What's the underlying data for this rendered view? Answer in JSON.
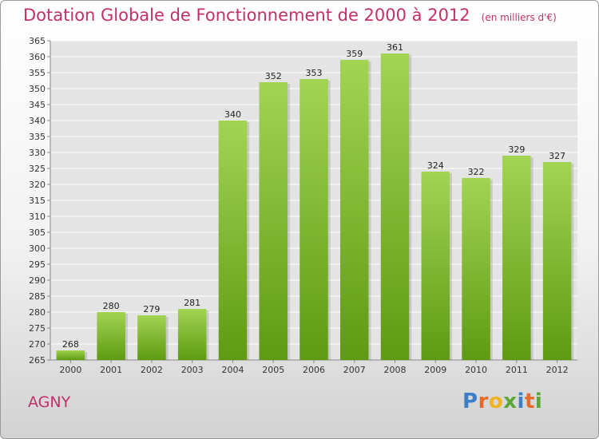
{
  "title": "Dotation Globale de Fonctionnement de 2000 à 2012",
  "unit_note": "(en milliers d'€)",
  "place": "AGNY",
  "logo": {
    "text": "Proxiti"
  },
  "colors": {
    "title": "#c0306a",
    "bar_top": "#a2d452",
    "bar_bottom": "#5f9a12",
    "grid": "#ffffff",
    "plot_bg": "#e4e4e4"
  },
  "chart_data": {
    "type": "bar",
    "title": "Dotation Globale de Fonctionnement de 2000 à 2012",
    "xlabel": "",
    "ylabel": "",
    "ylim": [
      265,
      365
    ],
    "ytick_step": 5,
    "grid": true,
    "categories": [
      "2000",
      "2001",
      "2002",
      "2003",
      "2004",
      "2005",
      "2006",
      "2007",
      "2008",
      "2009",
      "2010",
      "2011",
      "2012"
    ],
    "values": [
      268,
      280,
      279,
      281,
      340,
      352,
      353,
      359,
      361,
      324,
      322,
      329,
      327
    ]
  }
}
